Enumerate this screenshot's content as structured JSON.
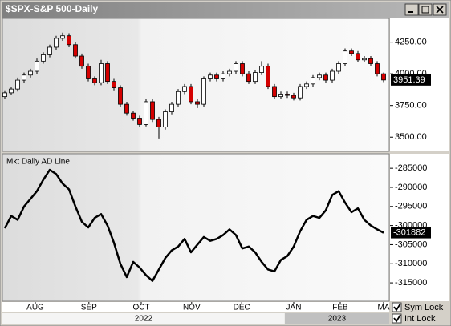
{
  "window": {
    "title": "$SPX-S&P 500-Daily"
  },
  "chart_data": [
    {
      "type": "candlestick",
      "up_color": "#ffffff",
      "down_color": "#d40000",
      "ylim": [
        3394,
        4431
      ],
      "yticks": [
        {
          "value": 3500,
          "label": "3500.00"
        },
        {
          "value": 3750,
          "label": "3750.00"
        },
        {
          "value": 4000,
          "label": "4000.00"
        },
        {
          "value": 4250,
          "label": "4250.00"
        }
      ],
      "open": [
        3820,
        3850,
        3880,
        3950,
        3990,
        4020,
        4100,
        4150,
        4210,
        4280,
        4300,
        4230,
        4140,
        4060,
        3960,
        3930,
        4080,
        3940,
        3890,
        3760,
        3690,
        3650,
        3600,
        3780,
        3640,
        3580,
        3700,
        3760,
        3860,
        3900,
        3780,
        3760,
        3960,
        3990,
        3960,
        4000,
        4020,
        4080,
        4000,
        3940,
        4010,
        4060,
        3900,
        3820,
        3840,
        3830,
        3810,
        3900,
        3920,
        3970,
        3990,
        3950,
        4020,
        4080,
        4180,
        4160,
        4110,
        4120,
        4080,
        4000
      ],
      "high": [
        3870,
        3900,
        3970,
        4010,
        4040,
        4120,
        4170,
        4230,
        4300,
        4325,
        4320,
        4250,
        4160,
        4080,
        3980,
        4110,
        4100,
        3960,
        3910,
        3780,
        3710,
        3670,
        3800,
        3800,
        3660,
        3720,
        3780,
        3880,
        3920,
        3920,
        3800,
        3980,
        4010,
        4010,
        4020,
        4040,
        4100,
        4100,
        4020,
        4030,
        4100,
        4080,
        3920,
        3860,
        3860,
        3850,
        3920,
        3940,
        3990,
        4010,
        4010,
        4040,
        4100,
        4200,
        4200,
        4180,
        4140,
        4140,
        4100,
        4010
      ],
      "low": [
        3800,
        3830,
        3860,
        3930,
        3970,
        4000,
        4080,
        4130,
        4190,
        4260,
        4210,
        4120,
        4040,
        3940,
        3910,
        3910,
        3920,
        3870,
        3740,
        3670,
        3630,
        3580,
        3585,
        3620,
        3490,
        3560,
        3680,
        3740,
        3840,
        3760,
        3730,
        3740,
        3940,
        3940,
        3940,
        3980,
        4000,
        3980,
        3920,
        3920,
        3990,
        3880,
        3800,
        3800,
        3810,
        3790,
        3790,
        3880,
        3900,
        3950,
        3930,
        3930,
        4000,
        4060,
        4140,
        4090,
        4090,
        4060,
        3980,
        3935
      ],
      "close": [
        3850,
        3880,
        3950,
        3990,
        4020,
        4100,
        4150,
        4210,
        4280,
        4300,
        4230,
        4140,
        4060,
        3960,
        3930,
        4080,
        3940,
        3890,
        3760,
        3690,
        3650,
        3600,
        3780,
        3640,
        3580,
        3700,
        3760,
        3860,
        3900,
        3780,
        3760,
        3960,
        3990,
        3960,
        4000,
        4020,
        4080,
        4000,
        3940,
        4010,
        4060,
        3900,
        3820,
        3840,
        3830,
        3810,
        3900,
        3920,
        3970,
        3990,
        3950,
        4020,
        4080,
        4180,
        4160,
        4110,
        4120,
        4080,
        4000,
        3951.39
      ]
    },
    {
      "type": "line",
      "title": "Mkt Daily AD Line",
      "color": "#000000",
      "ylim": [
        -319600,
        -281400
      ],
      "yticks": [
        -285000,
        -290000,
        -295000,
        -300000,
        -305000,
        -310000,
        -315000
      ],
      "values": [
        -300700,
        -297500,
        -298500,
        -295000,
        -293000,
        -291000,
        -288000,
        -285400,
        -286500,
        -289000,
        -290500,
        -295000,
        -299000,
        -300500,
        -298000,
        -297000,
        -300000,
        -304500,
        -310000,
        -313500,
        -309500,
        -311000,
        -313000,
        -314500,
        -311500,
        -308500,
        -306500,
        -305500,
        -303500,
        -307000,
        -305000,
        -303000,
        -304000,
        -303500,
        -302500,
        -301000,
        -302500,
        -306000,
        -305500,
        -307000,
        -309500,
        -311500,
        -312000,
        -309000,
        -308000,
        -305500,
        -301500,
        -298500,
        -297500,
        -298000,
        -296000,
        -292000,
        -291000,
        -294000,
        -296500,
        -295500,
        -298500,
        -300000,
        -301000,
        -301882
      ]
    }
  ],
  "x_axis": {
    "xlim": [
      -0.75,
      59.875
    ],
    "xticks": [
      {
        "value": 4.75,
        "label": "AUG"
      },
      {
        "value": 13.1,
        "label": "SEP"
      },
      {
        "value": 21.25,
        "label": "OCT"
      },
      {
        "value": 29.1,
        "label": "NOV"
      },
      {
        "value": 36.9,
        "label": "DEC"
      },
      {
        "value": 45,
        "label": "JAN"
      },
      {
        "value": 52.25,
        "label": "FEB"
      },
      {
        "value": 59,
        "label": "MA"
      }
    ],
    "years": [
      "2022",
      "2023"
    ],
    "year_break": 43.6
  },
  "controls": [
    {
      "label": "Sym Lock",
      "checked": true
    },
    {
      "label": "Int Lock",
      "checked": true
    }
  ]
}
